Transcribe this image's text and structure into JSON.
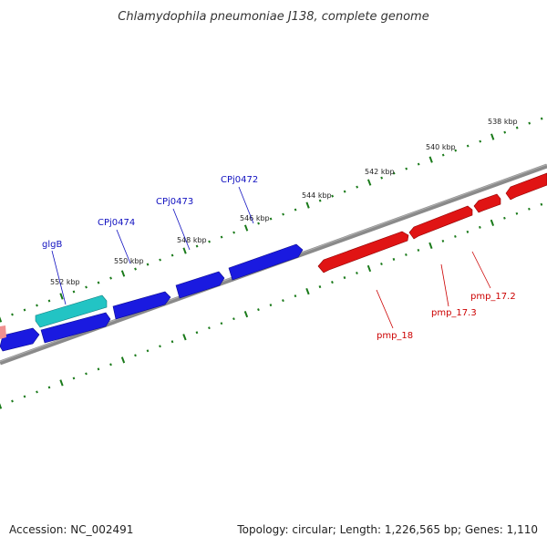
{
  "title": "Chlamydophila pneumoniae J138, complete genome",
  "footer": {
    "accession": "Accession: NC_002491",
    "summary": "Topology: circular; Length: 1,226,565 bp; Genes: 1,110"
  },
  "colors": {
    "backbone": "#888888",
    "forward_gene": "#1010e0",
    "reverse_gene": "#e01010",
    "highlight_gene": "#20c0c0",
    "partial_gene": "#f08080",
    "tick": "#1a7a1a",
    "forward_label": "#1010c0",
    "reverse_label": "#cc0000"
  },
  "scale_labels": [
    "552 kbp",
    "550 kbp",
    "548 kbp",
    "546 kbp",
    "544 kbp",
    "542 kbp",
    "540 kbp",
    "538 kbp"
  ],
  "forward_gene_labels": [
    "glgB",
    "CPj0474",
    "CPj0473",
    "CPj0472"
  ],
  "reverse_gene_labels": [
    "pmp_18",
    "pmp_17.3",
    "pmp_17.2"
  ]
}
